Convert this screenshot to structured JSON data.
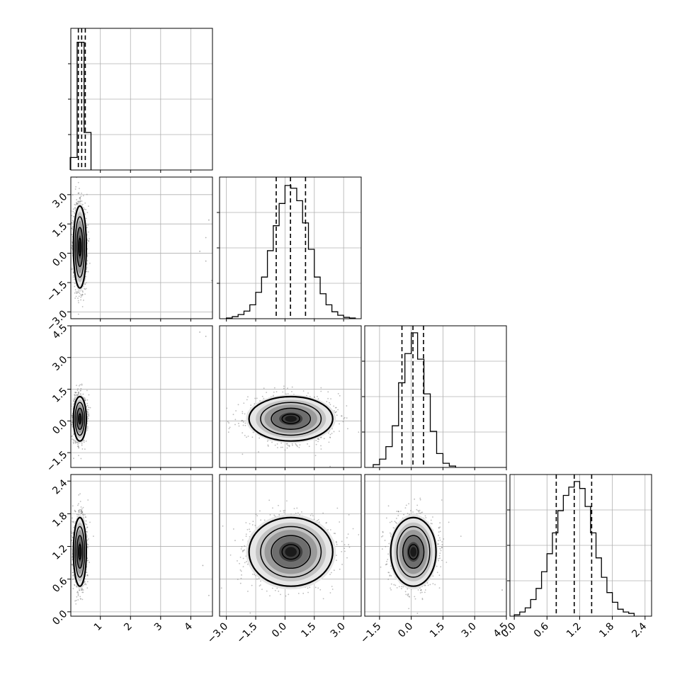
{
  "chart_data": {
    "type": "corner",
    "title": "",
    "subtitle": "",
    "grid": true,
    "legend": "none",
    "colors": {
      "frame": "#000000",
      "grid": "#b0b0b0",
      "points": "#7a7a7a",
      "contour": "#000000",
      "quantile_line": "#000000"
    },
    "params": [
      {
        "ticks": [
          "1",
          "2",
          "3",
          "4"
        ],
        "ticks_y": [],
        "range": [
          0.02,
          4.72
        ]
      },
      {
        "ticks": [
          "−3.0",
          "−1.5",
          "0.0",
          "1.5",
          "3.0"
        ],
        "ticks_y": [
          "−3.0",
          "−1.5",
          "0.0",
          "1.5",
          "3.0"
        ],
        "range": [
          -3.35,
          3.9
        ]
      },
      {
        "ticks": [
          "−1.5",
          "0.0",
          "1.5",
          "3.0",
          "4.5"
        ],
        "ticks_y": [
          "−1.5",
          "0.0",
          "1.5",
          "3.0",
          "4.5"
        ],
        "range": [
          -2.2,
          4.5
        ]
      },
      {
        "ticks": [
          "0.0",
          "0.6",
          "1.2",
          "1.8",
          "2.4"
        ],
        "ticks_y": [
          "0.0",
          "0.6",
          "1.2",
          "1.8",
          "2.4"
        ],
        "range": [
          -0.08,
          2.52
        ]
      }
    ],
    "histograms": [
      {
        "param": 0,
        "bins": [
          0.0,
          0.23,
          0.46,
          0.69
        ],
        "counts": [
          0.09,
          0.92,
          0.27,
          0.0
        ],
        "quantiles": [
          0.27,
          0.38,
          0.5
        ]
      },
      {
        "param": 1,
        "bins": [
          -3.0,
          -2.7,
          -2.4,
          -2.1,
          -1.8,
          -1.5,
          -1.2,
          -0.9,
          -0.6,
          -0.3,
          0.0,
          0.3,
          0.6,
          0.9,
          1.2,
          1.5,
          1.8,
          2.1,
          2.4,
          2.7,
          3.0,
          3.3,
          3.6
        ],
        "counts": [
          0.005,
          0.015,
          0.03,
          0.055,
          0.1,
          0.19,
          0.3,
          0.49,
          0.67,
          0.83,
          0.96,
          0.94,
          0.85,
          0.69,
          0.5,
          0.3,
          0.18,
          0.1,
          0.05,
          0.025,
          0.01,
          0.005
        ],
        "quantiles": [
          -0.45,
          0.28,
          1.05
        ]
      },
      {
        "param": 2,
        "bins": [
          -1.8,
          -1.5,
          -1.2,
          -0.9,
          -0.6,
          -0.3,
          0.0,
          0.3,
          0.6,
          0.9,
          1.2,
          1.5,
          1.8,
          2.1
        ],
        "counts": [
          0.02,
          0.06,
          0.15,
          0.3,
          0.61,
          0.82,
          0.97,
          0.78,
          0.53,
          0.26,
          0.1,
          0.03,
          0.01
        ],
        "quantiles": [
          -0.44,
          0.08,
          0.58
        ]
      },
      {
        "param": 3,
        "bins": [
          0.0,
          0.1,
          0.2,
          0.3,
          0.4,
          0.5,
          0.6,
          0.7,
          0.8,
          0.9,
          1.0,
          1.1,
          1.2,
          1.3,
          1.4,
          1.5,
          1.6,
          1.7,
          1.8,
          1.9,
          2.0,
          2.1,
          2.2
        ],
        "counts": [
          0.01,
          0.03,
          0.06,
          0.12,
          0.2,
          0.32,
          0.45,
          0.6,
          0.76,
          0.87,
          0.93,
          0.97,
          0.92,
          0.79,
          0.6,
          0.42,
          0.28,
          0.17,
          0.1,
          0.05,
          0.03,
          0.02
        ],
        "quantiles": [
          0.77,
          1.1,
          1.42
        ]
      }
    ],
    "scatter_panels": [
      {
        "x": 0,
        "y": 1,
        "mean": [
          0.32,
          0.32
        ],
        "std": [
          0.1,
          1.0
        ],
        "outliers": [
          [
            4.6,
            1.7
          ],
          [
            4.5,
            0.8
          ],
          [
            4.3,
            0.1
          ],
          [
            4.5,
            -0.4
          ],
          [
            4.7,
            -1.4
          ]
        ]
      },
      {
        "x": 0,
        "y": 2,
        "mean": [
          0.32,
          0.1
        ],
        "std": [
          0.1,
          0.5
        ],
        "outliers": [
          [
            4.3,
            4.2
          ],
          [
            4.5,
            4.0
          ]
        ]
      },
      {
        "x": 0,
        "y": 3,
        "mean": [
          0.32,
          1.1
        ],
        "std": [
          0.1,
          0.3
        ],
        "outliers": [
          [
            4.4,
            0.85
          ],
          [
            4.6,
            0.3
          ]
        ]
      },
      {
        "x": 1,
        "y": 2,
        "mean": [
          0.3,
          0.1
        ],
        "std": [
          1.0,
          0.5
        ],
        "outliers": []
      },
      {
        "x": 1,
        "y": 3,
        "mean": [
          0.3,
          1.1
        ],
        "std": [
          1.0,
          0.3
        ],
        "outliers": []
      },
      {
        "x": 2,
        "y": 3,
        "mean": [
          0.1,
          1.1
        ],
        "std": [
          0.5,
          0.3
        ],
        "outliers": [
          [
            4.3,
            0.4
          ]
        ]
      }
    ]
  }
}
